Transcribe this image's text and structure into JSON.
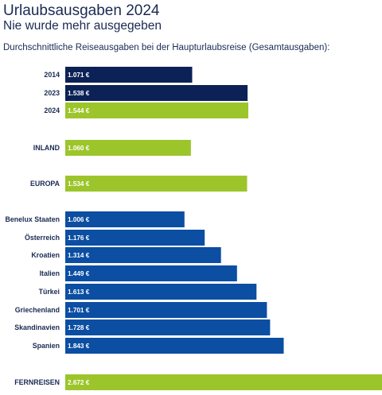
{
  "header": {
    "title": "Urlaubsausgaben 2024",
    "subtitle": "Nie wurde mehr ausgegeben",
    "caption": "Durchschnittliche Reiseausgaben bei der Haupturlaubsreise (Gesamtausgaben):"
  },
  "colors": {
    "dark_navy": "#0c2256",
    "green": "#9cc52b",
    "blue": "#0b4ea2"
  },
  "chart_data": {
    "type": "bar",
    "orientation": "horizontal",
    "title": "Urlaubsausgaben 2024",
    "subtitle": "Nie wurde mehr ausgegeben",
    "xlim": [
      0,
      2672
    ],
    "grid": false,
    "categories": [
      "2014",
      "2023",
      "2024",
      "INLAND",
      "EUROPA",
      "Benelux Staaten",
      "Österreich",
      "Kroatien",
      "Italien",
      "Türkei",
      "Griechenland",
      "Skandinavien",
      "Spanien",
      "FERNREISEN"
    ],
    "values": [
      1071,
      1538,
      1544,
      1060,
      1534,
      1006,
      1176,
      1314,
      1449,
      1613,
      1701,
      1728,
      1843,
      2672
    ],
    "value_labels": [
      "1.071 €",
      "1.538 €",
      "1.544 €",
      "1.060 €",
      "1.534 €",
      "1.006 €",
      "1.176 €",
      "1.314 €",
      "1.449 €",
      "1.613 €",
      "1.701 €",
      "1.728 €",
      "1.843 €",
      "2.672 €"
    ],
    "bar_colors": [
      "#0c2256",
      "#0c2256",
      "#9cc52b",
      "#9cc52b",
      "#9cc52b",
      "#0b4ea2",
      "#0b4ea2",
      "#0b4ea2",
      "#0b4ea2",
      "#0b4ea2",
      "#0b4ea2",
      "#0b4ea2",
      "#0b4ea2",
      "#9cc52b"
    ]
  }
}
